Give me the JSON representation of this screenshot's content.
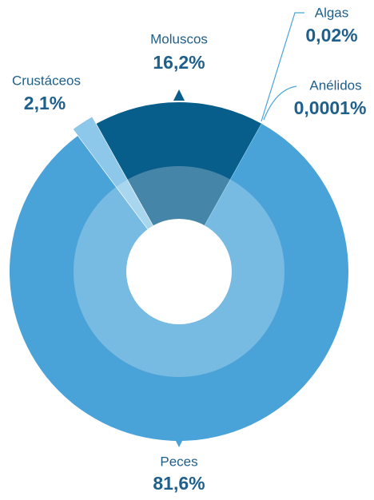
{
  "chart_data": {
    "type": "pie",
    "categories": [
      "Moluscos",
      "Algas",
      "Anélidos",
      "Peces",
      "Crustáceos"
    ],
    "values": [
      16.2,
      0.02,
      0.0001,
      81.6,
      2.1
    ],
    "value_labels": [
      "16,2%",
      "0,02%",
      "0,0001%",
      "81,6%",
      "2,1%"
    ],
    "colors": [
      "#075e8b",
      "#8dc8ea",
      "#8dc8ea",
      "#4aa3d8",
      "#8dc8ea"
    ]
  }
}
